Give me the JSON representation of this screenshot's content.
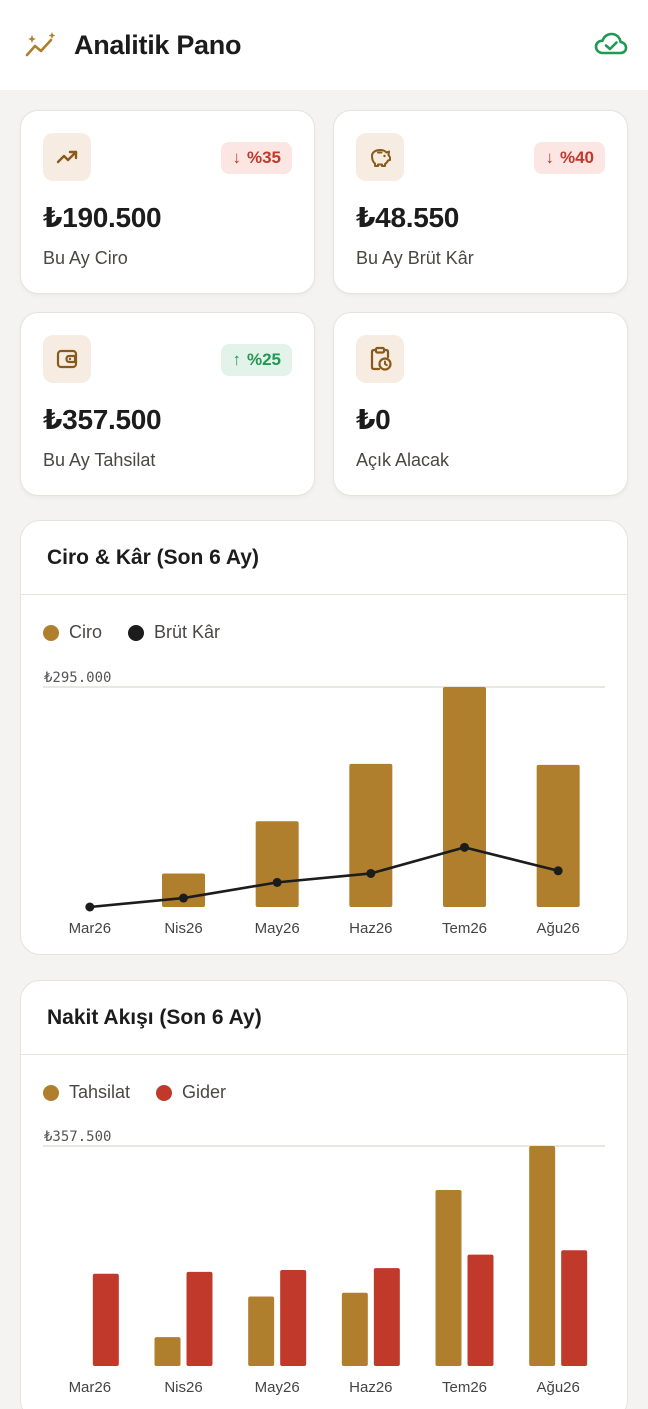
{
  "header": {
    "title": "Analitik Pano",
    "logo_icon": "sparkle-trend-icon",
    "sync_icon": "cloud-check-icon"
  },
  "kpis": [
    {
      "icon": "trending-up-icon",
      "badge": "%35",
      "badge_dir": "down",
      "value": "₺190.500",
      "label": "Bu Ay Ciro"
    },
    {
      "icon": "piggy-bank-icon",
      "badge": "%40",
      "badge_dir": "down",
      "value": "₺48.550",
      "label": "Bu Ay Brüt Kâr"
    },
    {
      "icon": "wallet-icon",
      "badge": "%25",
      "badge_dir": "up",
      "value": "₺357.500",
      "label": "Bu Ay Tahsilat"
    },
    {
      "icon": "clipboard-clock-icon",
      "badge": "",
      "badge_dir": "",
      "value": "₺0",
      "label": "Açık Alacak"
    }
  ],
  "colors": {
    "gold": "#b07f2d",
    "black": "#1c1c1c",
    "red": "#c0392b",
    "green": "#1e9a52"
  },
  "chart_data": [
    {
      "type": "bar",
      "title": "Ciro & Kâr (Son 6 Ay)",
      "categories": [
        "Mar26",
        "Nis26",
        "May26",
        "Haz26",
        "Tem26",
        "Ağu26"
      ],
      "series": [
        {
          "name": "Ciro",
          "kind": "bar",
          "values": [
            0,
            45000,
            115000,
            192000,
            295000,
            190500
          ]
        },
        {
          "name": "Brüt Kâr",
          "kind": "line",
          "values": [
            0,
            12000,
            33000,
            45000,
            80000,
            48550
          ]
        }
      ],
      "ymax_label": "₺295.000",
      "ylim": [
        0,
        295000
      ],
      "legend_position": "top-left"
    },
    {
      "type": "bar",
      "title": "Nakit Akışı (Son 6 Ay)",
      "categories": [
        "Mar26",
        "Nis26",
        "May26",
        "Haz26",
        "Tem26",
        "Ağu26"
      ],
      "series": [
        {
          "name": "Tahsilat",
          "values": [
            0,
            47000,
            113000,
            119000,
            286000,
            357500
          ]
        },
        {
          "name": "Gider",
          "values": [
            150000,
            153000,
            156000,
            159000,
            181000,
            188000
          ]
        }
      ],
      "ymax_label": "₺357.500",
      "ylim": [
        0,
        357500
      ],
      "legend_position": "top-left"
    }
  ]
}
